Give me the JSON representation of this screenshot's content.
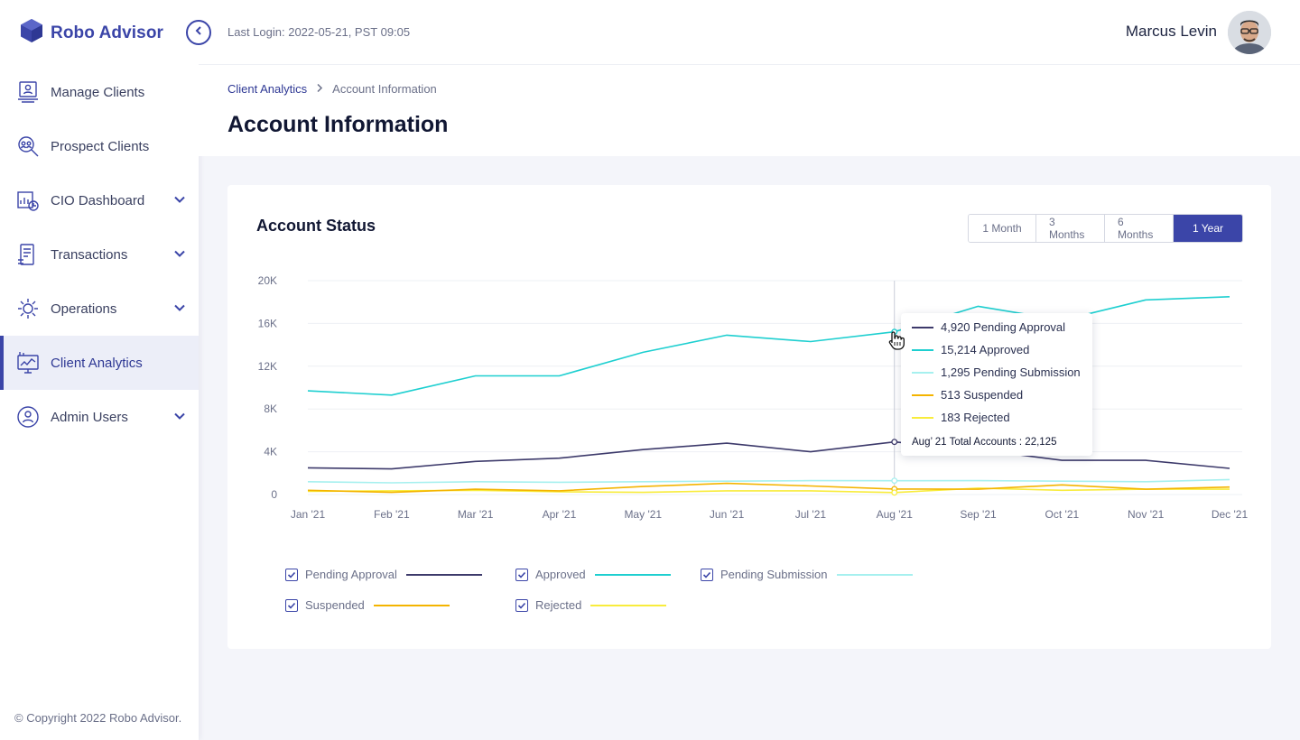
{
  "app": {
    "name": "Robo Advisor"
  },
  "sidebar": {
    "items": [
      {
        "label": "Manage Clients",
        "icon": "manage-clients-icon",
        "expandable": false
      },
      {
        "label": "Prospect Clients",
        "icon": "prospect-clients-icon",
        "expandable": false
      },
      {
        "label": "CIO Dashboard",
        "icon": "cio-dashboard-icon",
        "expandable": true
      },
      {
        "label": "Transactions",
        "icon": "transactions-icon",
        "expandable": true
      },
      {
        "label": "Operations",
        "icon": "operations-icon",
        "expandable": true
      },
      {
        "label": "Client Analytics",
        "icon": "client-analytics-icon",
        "expandable": false,
        "active": true
      },
      {
        "label": "Admin Users",
        "icon": "admin-users-icon",
        "expandable": true
      }
    ],
    "copyright": "© Copyright 2022 Robo Advisor."
  },
  "header": {
    "last_login": "Last Login: 2022-05-21, PST 09:05",
    "user_name": "Marcus Levin"
  },
  "breadcrumb": {
    "parent": "Client Analytics",
    "current": "Account Information"
  },
  "page_title": "Account Information",
  "card": {
    "title": "Account Status",
    "ranges": [
      "1 Month",
      "3 Months",
      "6 Months",
      "1 Year"
    ],
    "active_range": "1 Year"
  },
  "colors": {
    "accent": "#3b45a8",
    "pending_approval": "#3d3a6b",
    "approved": "#1ecfd0",
    "pending_submission": "#a6f0ef",
    "suspended": "#f4b400",
    "rejected": "#f8ec3c"
  },
  "chart_data": {
    "type": "line",
    "categories": [
      "Jan '21",
      "Feb '21",
      "Mar '21",
      "Apr '21",
      "May '21",
      "Jun '21",
      "Jul '21",
      "Aug '21",
      "Sep '21",
      "Oct '21",
      "Nov '21",
      "Dec '21"
    ],
    "ylim": [
      0,
      20000
    ],
    "yticks": [
      "0",
      "4K",
      "8K",
      "12K",
      "16K",
      "20K"
    ],
    "grid": true,
    "series": [
      {
        "name": "Pending Approval",
        "color": "#3d3a6b",
        "values": [
          2500,
          2400,
          3100,
          3400,
          4200,
          4800,
          4000,
          4920,
          4200,
          3200,
          3200,
          2450
        ]
      },
      {
        "name": "Approved",
        "color": "#1ecfd0",
        "values": [
          9700,
          9300,
          11100,
          11100,
          13300,
          14900,
          14300,
          15214,
          17600,
          16300,
          18200,
          18500
        ]
      },
      {
        "name": "Pending Submission",
        "color": "#a6f0ef",
        "values": [
          1200,
          1100,
          1200,
          1150,
          1200,
          1250,
          1300,
          1295,
          1300,
          1250,
          1200,
          1400
        ]
      },
      {
        "name": "Suspended",
        "color": "#f4b400",
        "values": [
          400,
          200,
          500,
          350,
          750,
          1050,
          800,
          513,
          500,
          900,
          500,
          700
        ]
      },
      {
        "name": "Rejected",
        "color": "#f8ec3c",
        "values": [
          300,
          350,
          400,
          250,
          200,
          350,
          350,
          183,
          600,
          400,
          500,
          500
        ]
      }
    ],
    "tooltip": {
      "rows": [
        "4,920 Pending Approval",
        "15,214 Approved",
        "1,295 Pending Submission",
        "513 Suspended",
        "183 Rejected"
      ],
      "total": "Aug’ 21 Total Accounts : 22,125",
      "hover_index": 7
    },
    "legend": [
      "Pending Approval",
      "Approved",
      "Pending Submission",
      "Suspended",
      "Rejected"
    ]
  }
}
